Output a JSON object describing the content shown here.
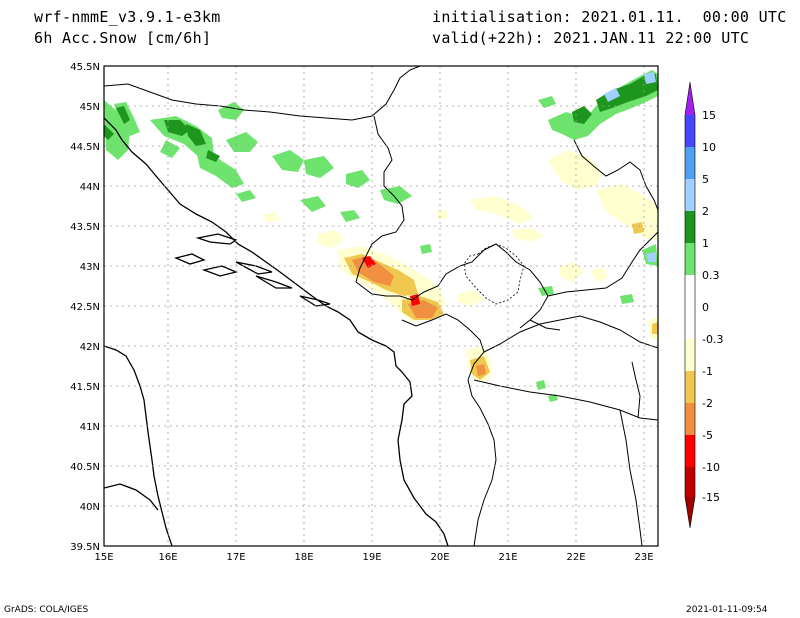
{
  "header": {
    "model": "wrf-nmmE_v3.9.1-e3km",
    "variable": "6h Acc.Snow [cm/6h]",
    "init": "initialisation: 2021.01.11.  00:00 UTC",
    "valid": "valid(+22h): 2021.JAN.11 22:00 UTC"
  },
  "map": {
    "lat_labels": [
      "45.5N",
      "45N",
      "44.5N",
      "44N",
      "43.5N",
      "43N",
      "42.5N",
      "42N",
      "41.5N",
      "41N",
      "40.5N",
      "40N",
      "39.5N"
    ],
    "lon_labels": [
      "15E",
      "16E",
      "17E",
      "18E",
      "19E",
      "20E",
      "21E",
      "22E",
      "23E"
    ]
  },
  "legend": {
    "levels": [
      "15",
      "10",
      "5",
      "2",
      "1",
      "0.3",
      "0",
      "-0.3",
      "-1",
      "-2",
      "-5",
      "-10",
      "-15"
    ],
    "colors": {
      "pos_top": "#a020f0",
      "pos_15": "#4646ff",
      "pos_10": "#4ea0f0",
      "pos_5": "#a0d0ff",
      "pos_2": "#1e961e",
      "pos_1": "#6ee46e",
      "pos_03": "#ffffff",
      "neg_03": "#ffffd0",
      "neg_1": "#f0c850",
      "neg_2": "#f09040",
      "neg_5": "#ff0000",
      "neg_10": "#c00000",
      "neg_15": "#a00000"
    }
  },
  "footer": {
    "left": "GrADS: COLA/IGES",
    "right": "2021-01-11-09:54"
  }
}
